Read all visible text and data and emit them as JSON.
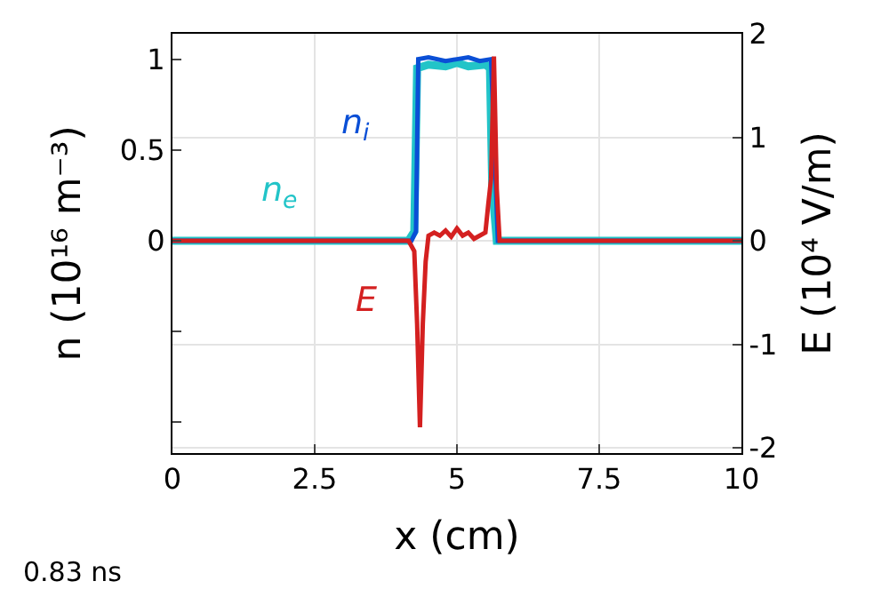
{
  "chart_data": {
    "type": "line",
    "xlabel": "x (cm)",
    "ylabel": "n (10¹⁶ m⁻³)",
    "y2label": "E (10⁴ V/m)",
    "annotations": [
      "0.83 ns"
    ],
    "series": [
      {
        "name": "n$_{e}$",
        "color": "#22c4c8",
        "x": [
          0,
          4.15,
          4.25,
          4.3,
          4.5,
          4.8,
          5.0,
          5.2,
          5.5,
          5.58,
          5.62,
          5.7,
          10
        ],
        "values": [
          0,
          0,
          0.05,
          0.95,
          0.97,
          0.96,
          0.98,
          0.96,
          0.97,
          0.95,
          0.3,
          0,
          0
        ]
      },
      {
        "name": "n$_{i}$",
        "color": "#0a4fd6",
        "x": [
          0,
          4.2,
          4.28,
          4.32,
          4.5,
          4.8,
          5.0,
          5.2,
          5.4,
          5.6,
          5.66,
          5.72,
          10
        ],
        "values": [
          0,
          0,
          0.05,
          1.0,
          1.01,
          0.99,
          1.0,
          1.01,
          0.99,
          1.0,
          0.5,
          0,
          0
        ]
      },
      {
        "name": "E",
        "color": "#d42020",
        "axis": "y2",
        "x": [
          0,
          4.15,
          4.25,
          4.3,
          4.35,
          4.4,
          4.45,
          4.5,
          4.6,
          4.7,
          4.8,
          4.9,
          5.0,
          5.1,
          5.2,
          5.3,
          5.4,
          5.5,
          5.55,
          5.6,
          5.65,
          5.7,
          5.75,
          10
        ],
        "values": [
          0,
          0,
          -0.1,
          -0.8,
          -1.8,
          -0.8,
          -0.2,
          0.05,
          0.08,
          0.05,
          0.1,
          0.04,
          0.12,
          0.05,
          0.08,
          0.02,
          0.05,
          0.08,
          0.35,
          0.6,
          1.78,
          0.5,
          0,
          0
        ]
      }
    ],
    "xlim": [
      0,
      10
    ],
    "xticks": [
      0,
      2.5,
      5,
      7.5,
      10
    ],
    "ylim": [
      -1.17,
      1.14
    ],
    "yticks": [
      {
        "value": -1,
        "label": null
      },
      {
        "value": -0.5,
        "label": null
      },
      0,
      0.5,
      1
    ],
    "y2lim": [
      -2.05,
      2.0
    ],
    "y2ticks": [
      -2,
      -1,
      0,
      1,
      2
    ],
    "grid": true,
    "legend": false,
    "marker": "none",
    "line_style": "solid"
  }
}
